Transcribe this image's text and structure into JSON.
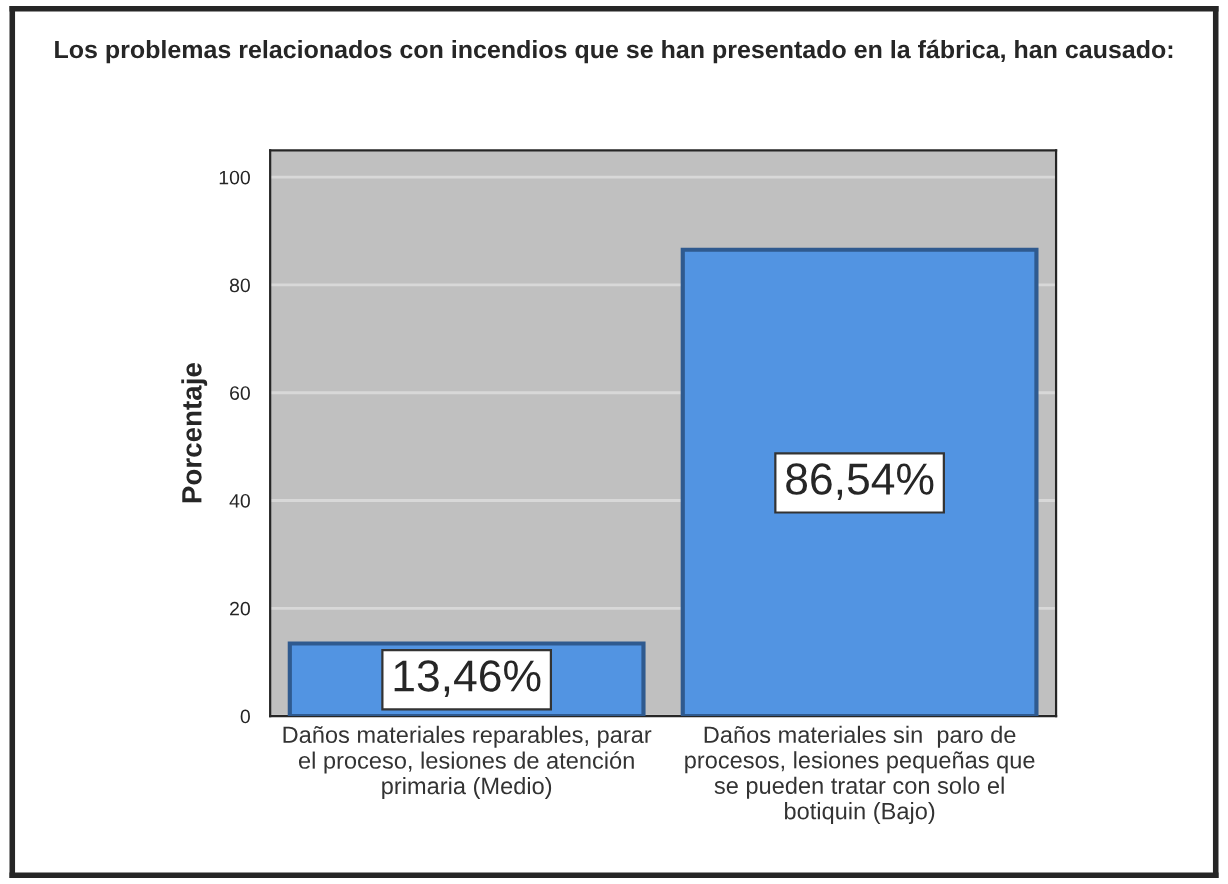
{
  "chart_data": {
    "type": "bar",
    "title": "Los problemas relacionados con incendios que se han presentado en la fábrica, han causado:",
    "ylabel": "Porcentaje",
    "categories": [
      "Daños materiales reparables, parar\nel proceso, lesiones de atención\nprimaria (Medio)",
      "Daños materiales sin  paro de\nprocesos, lesiones pequeñas que\nse pueden tratar con solo el\nbotiquin (Bajo)"
    ],
    "values": [
      13.46,
      86.54
    ],
    "color": "#5294e2",
    "value_labels": [
      "13,46%",
      "86,54%"
    ],
    "ylim": [
      0,
      105
    ],
    "yticks": [
      0,
      20,
      40,
      60,
      80,
      100
    ],
    "grid": "y"
  }
}
